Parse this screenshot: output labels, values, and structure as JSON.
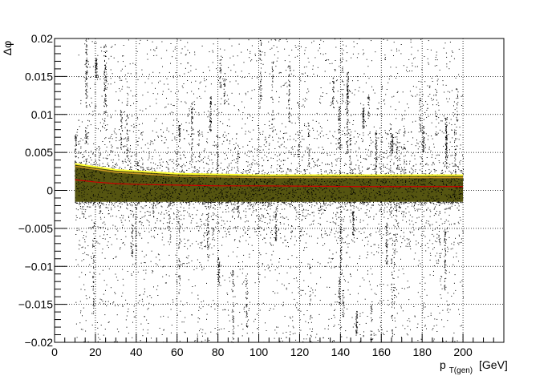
{
  "chart_data": {
    "type": "scatter",
    "title": "",
    "xlabel": {
      "main": "p",
      "sub": "T(gen)",
      "unit": "[GeV]"
    },
    "ylabel": "Δφ",
    "xlim": [
      0,
      220
    ],
    "ylim": [
      -0.02,
      0.02
    ],
    "x_ticks": [
      0,
      20,
      40,
      60,
      80,
      100,
      120,
      140,
      160,
      180,
      200
    ],
    "x_tick_labels": [
      "0",
      "20",
      "40",
      "60",
      "80",
      "100",
      "120",
      "140",
      "160",
      "180",
      "200"
    ],
    "y_ticks": [
      -0.02,
      -0.015,
      -0.01,
      -0.005,
      0,
      0.005,
      0.01,
      0.015,
      0.02
    ],
    "y_tick_labels": [
      "−0.02",
      "−0.015",
      "−0.01",
      "−0.005",
      "0",
      "0.005",
      "0.01",
      "0.015",
      "0.02"
    ],
    "grid": true,
    "x_data_range": [
      10,
      200
    ],
    "core_band": {
      "x": [
        10,
        30,
        60,
        100,
        150,
        200
      ],
      "y_low": [
        -0.0015,
        -0.0015,
        -0.0015,
        -0.0015,
        -0.0015,
        -0.0015
      ],
      "y_high": [
        0.0035,
        0.0027,
        0.0022,
        0.002,
        0.002,
        0.002
      ]
    },
    "profile_mean": {
      "x": [
        10,
        20,
        30,
        40,
        60,
        80,
        100,
        150,
        200
      ],
      "y": [
        0.0014,
        0.0011,
        0.0009,
        0.0008,
        0.0007,
        0.0006,
        0.0006,
        0.0005,
        0.0005
      ]
    },
    "colors": {
      "points": "#000000",
      "band_fill": "#555511",
      "band_edge": "#ffff33",
      "mean_line": "#cc0000",
      "grid": "#000000"
    }
  }
}
